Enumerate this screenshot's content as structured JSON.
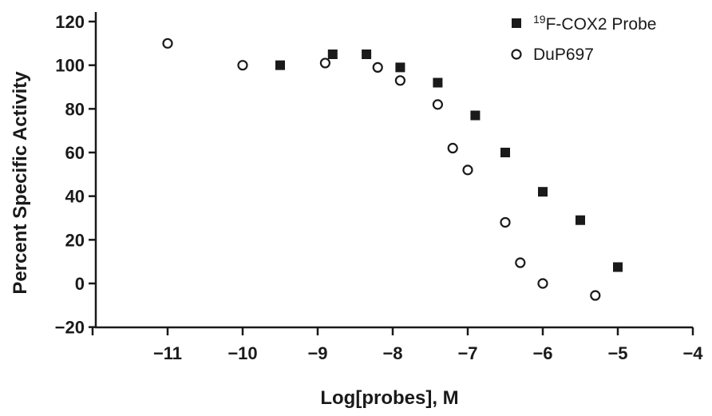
{
  "chart_data": {
    "type": "scatter",
    "xlabel": "Log[probes], M",
    "ylabel": "Percent Specific Activity",
    "xlim": [
      -12,
      -4
    ],
    "ylim": [
      -20,
      125
    ],
    "x_ticks": [
      -11,
      -10,
      -9,
      -8,
      -7,
      -6,
      -5,
      -4
    ],
    "x_tick_labels": [
      "−11",
      "−10",
      "−9",
      "−8",
      "−7",
      "−6",
      "−5",
      "−4"
    ],
    "y_ticks": [
      -20,
      0,
      20,
      40,
      60,
      80,
      100,
      120
    ],
    "y_tick_labels": [
      "−20",
      "0",
      "20",
      "40",
      "60",
      "80",
      "100",
      "120"
    ],
    "grid": false,
    "legend_position": "top-right",
    "series": [
      {
        "name": "19F-COX2 Probe",
        "name_sup": "19",
        "name_rest": "F-COX2 Probe",
        "marker": "filled-square",
        "color": "#1a1a1a",
        "x": [
          -9.5,
          -8.8,
          -8.35,
          -7.9,
          -7.4,
          -6.9,
          -6.5,
          -6.0,
          -5.5,
          -5.0
        ],
        "y": [
          100,
          105,
          105,
          99,
          92,
          77,
          60,
          42,
          29,
          7.5
        ]
      },
      {
        "name": "DuP697",
        "marker": "open-circle",
        "color": "#1a1a1a",
        "x": [
          -11.0,
          -10.0,
          -8.9,
          -8.2,
          -7.9,
          -7.4,
          -7.2,
          -7.0,
          -6.5,
          -6.3,
          -6.0,
          -5.3
        ],
        "y": [
          110,
          100,
          101,
          99,
          93,
          82,
          62,
          52,
          28,
          9.5,
          0,
          -5.5
        ]
      }
    ]
  }
}
